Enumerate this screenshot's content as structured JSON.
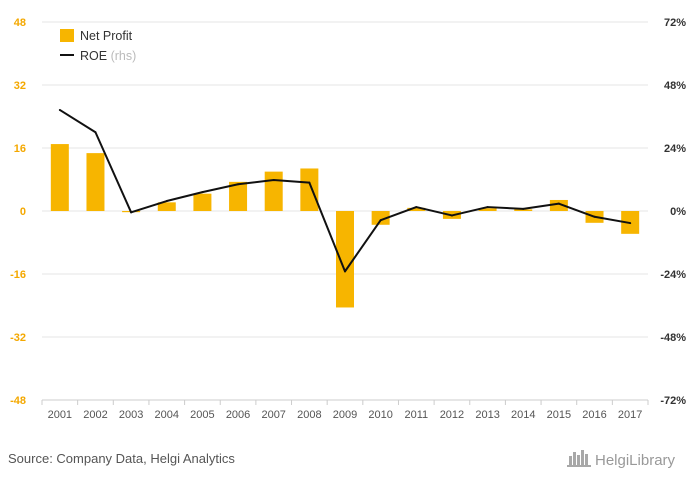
{
  "chart_data": {
    "type": "bar",
    "categories": [
      "2001",
      "2002",
      "2003",
      "2004",
      "2005",
      "2006",
      "2007",
      "2008",
      "2009",
      "2010",
      "2011",
      "2012",
      "2013",
      "2014",
      "2015",
      "2016",
      "2017"
    ],
    "series": [
      {
        "name": "Net Profit",
        "type": "bar",
        "axis": "left",
        "color": "#f7b500",
        "values": [
          17.0,
          14.7,
          -0.3,
          2.2,
          4.4,
          7.4,
          10.0,
          10.8,
          -24.5,
          -3.5,
          0.8,
          -2.0,
          0.7,
          0.4,
          2.8,
          -3.0,
          -5.8
        ]
      },
      {
        "name": "ROE",
        "name_suffix": "(rhs)",
        "type": "line",
        "axis": "right",
        "color": "#111111",
        "values": [
          38.5,
          30.0,
          -0.5,
          3.8,
          7.2,
          10.2,
          11.8,
          10.8,
          -23.0,
          -3.5,
          1.5,
          -1.7,
          1.5,
          0.8,
          2.8,
          -2.2,
          -4.6
        ]
      }
    ],
    "left_axis": {
      "min": -48,
      "max": 48,
      "ticks": [
        "48",
        "32",
        "16",
        "0",
        "-16",
        "-32",
        "-48"
      ],
      "tick_values": [
        48,
        32,
        16,
        0,
        -16,
        -32,
        -48
      ]
    },
    "right_axis": {
      "min": -72,
      "max": 72,
      "ticks": [
        "72%",
        "48%",
        "24%",
        "0%",
        "-24%",
        "-48%",
        "-72%"
      ],
      "tick_values": [
        72,
        48,
        24,
        0,
        -24,
        -48,
        -72
      ]
    },
    "grid": true,
    "legend_position": "top-left"
  },
  "source": "Source: Company Data, Helgi Analytics",
  "brand": "HelgiLibrary"
}
